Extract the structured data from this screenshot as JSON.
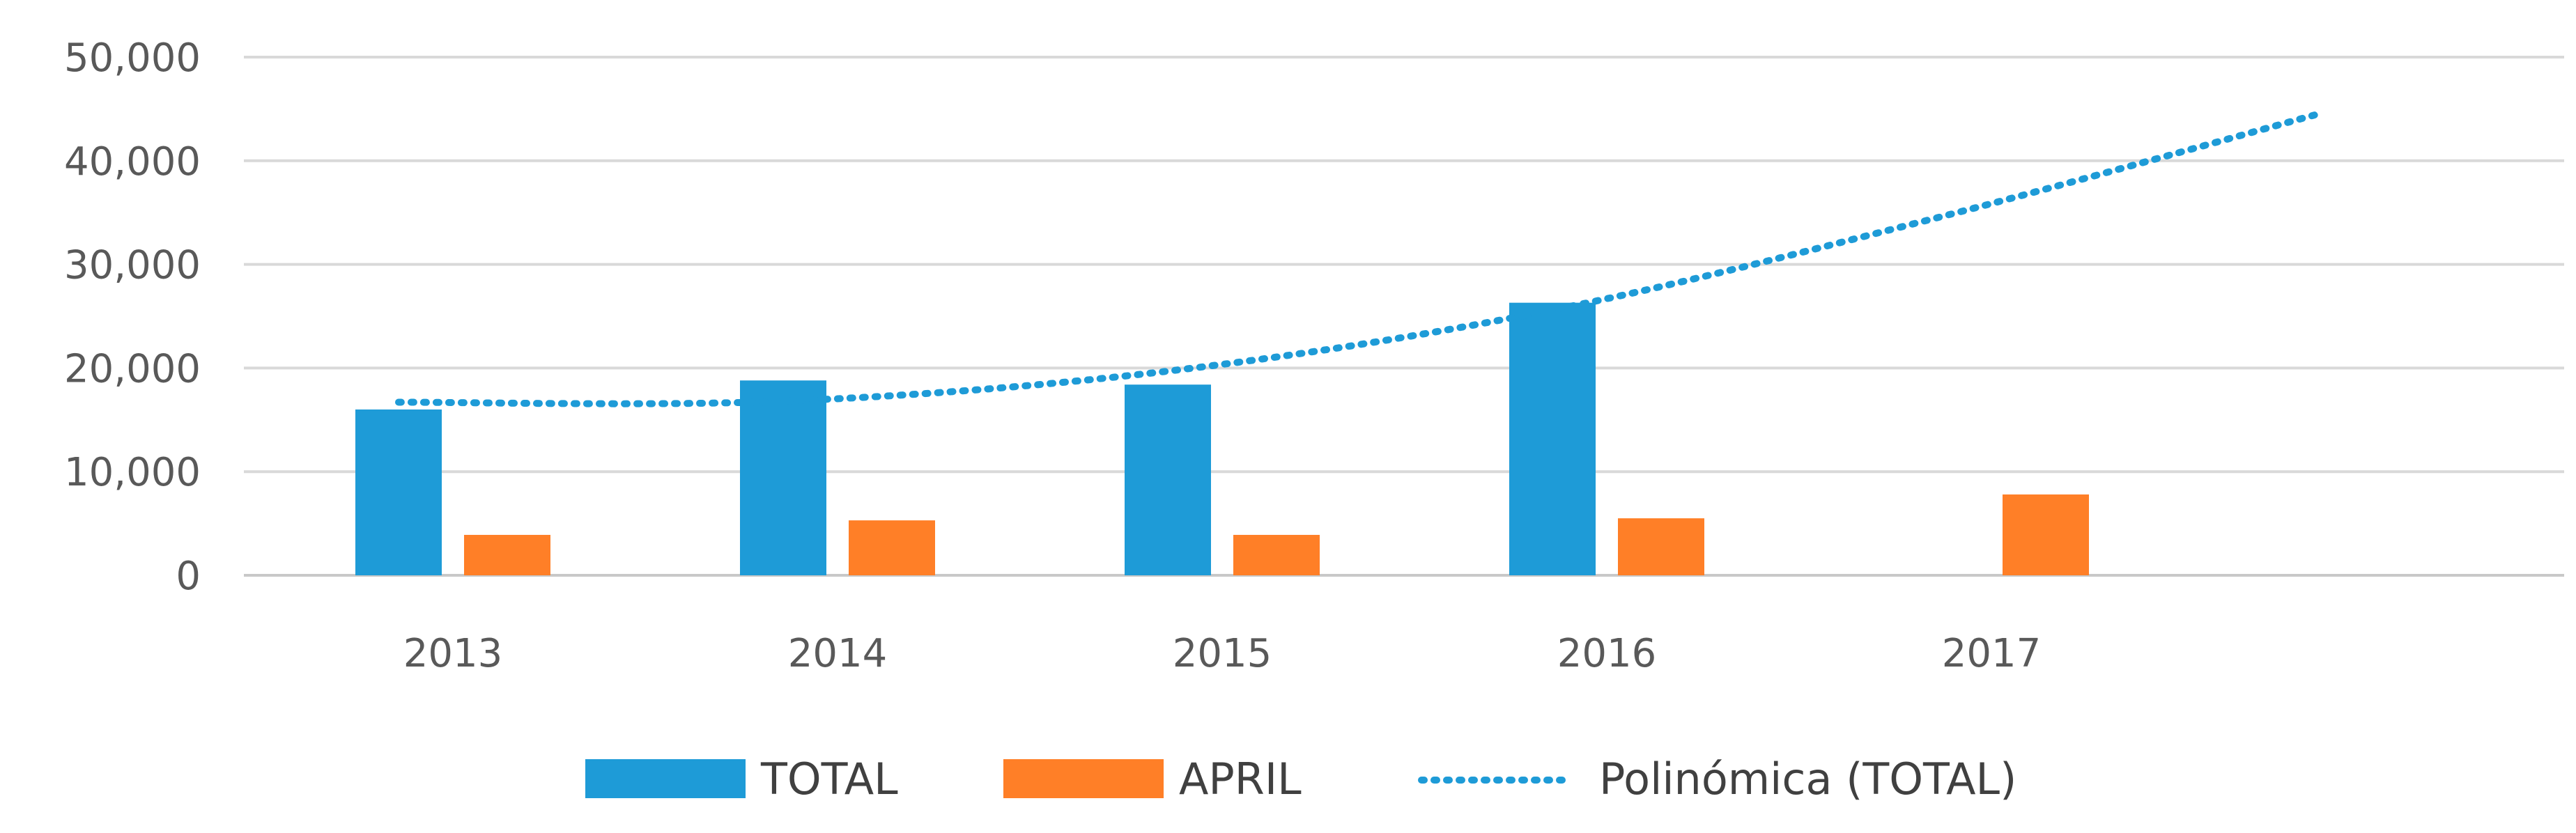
{
  "chart_data": {
    "type": "bar",
    "categories": [
      "2013",
      "2014",
      "2015",
      "2016",
      "2017"
    ],
    "series": [
      {
        "name": "TOTAL",
        "values": [
          16000,
          18800,
          18400,
          26300,
          null
        ],
        "color": "#1E9BD7"
      },
      {
        "name": "APRIL",
        "values": [
          3900,
          5300,
          3900,
          5500,
          7800
        ],
        "color": "#FF7F27"
      }
    ],
    "trendline": {
      "name": "Polinómica (TOTAL)",
      "type": "polynomial",
      "series": "TOTAL",
      "x": [
        2013,
        2014,
        2015,
        2016,
        2017,
        2018
      ],
      "values": [
        16700,
        16800,
        19700,
        25600,
        34500,
        44600
      ],
      "color": "#1E9BD7",
      "style": "dotted"
    },
    "ylim": [
      0,
      50000
    ],
    "yticks": [
      "0",
      "10,000",
      "20,000",
      "30,000",
      "40,000",
      "50,000"
    ],
    "ytick_values": [
      0,
      10000,
      20000,
      30000,
      40000,
      50000
    ],
    "grid": true,
    "legend": "bottom"
  }
}
